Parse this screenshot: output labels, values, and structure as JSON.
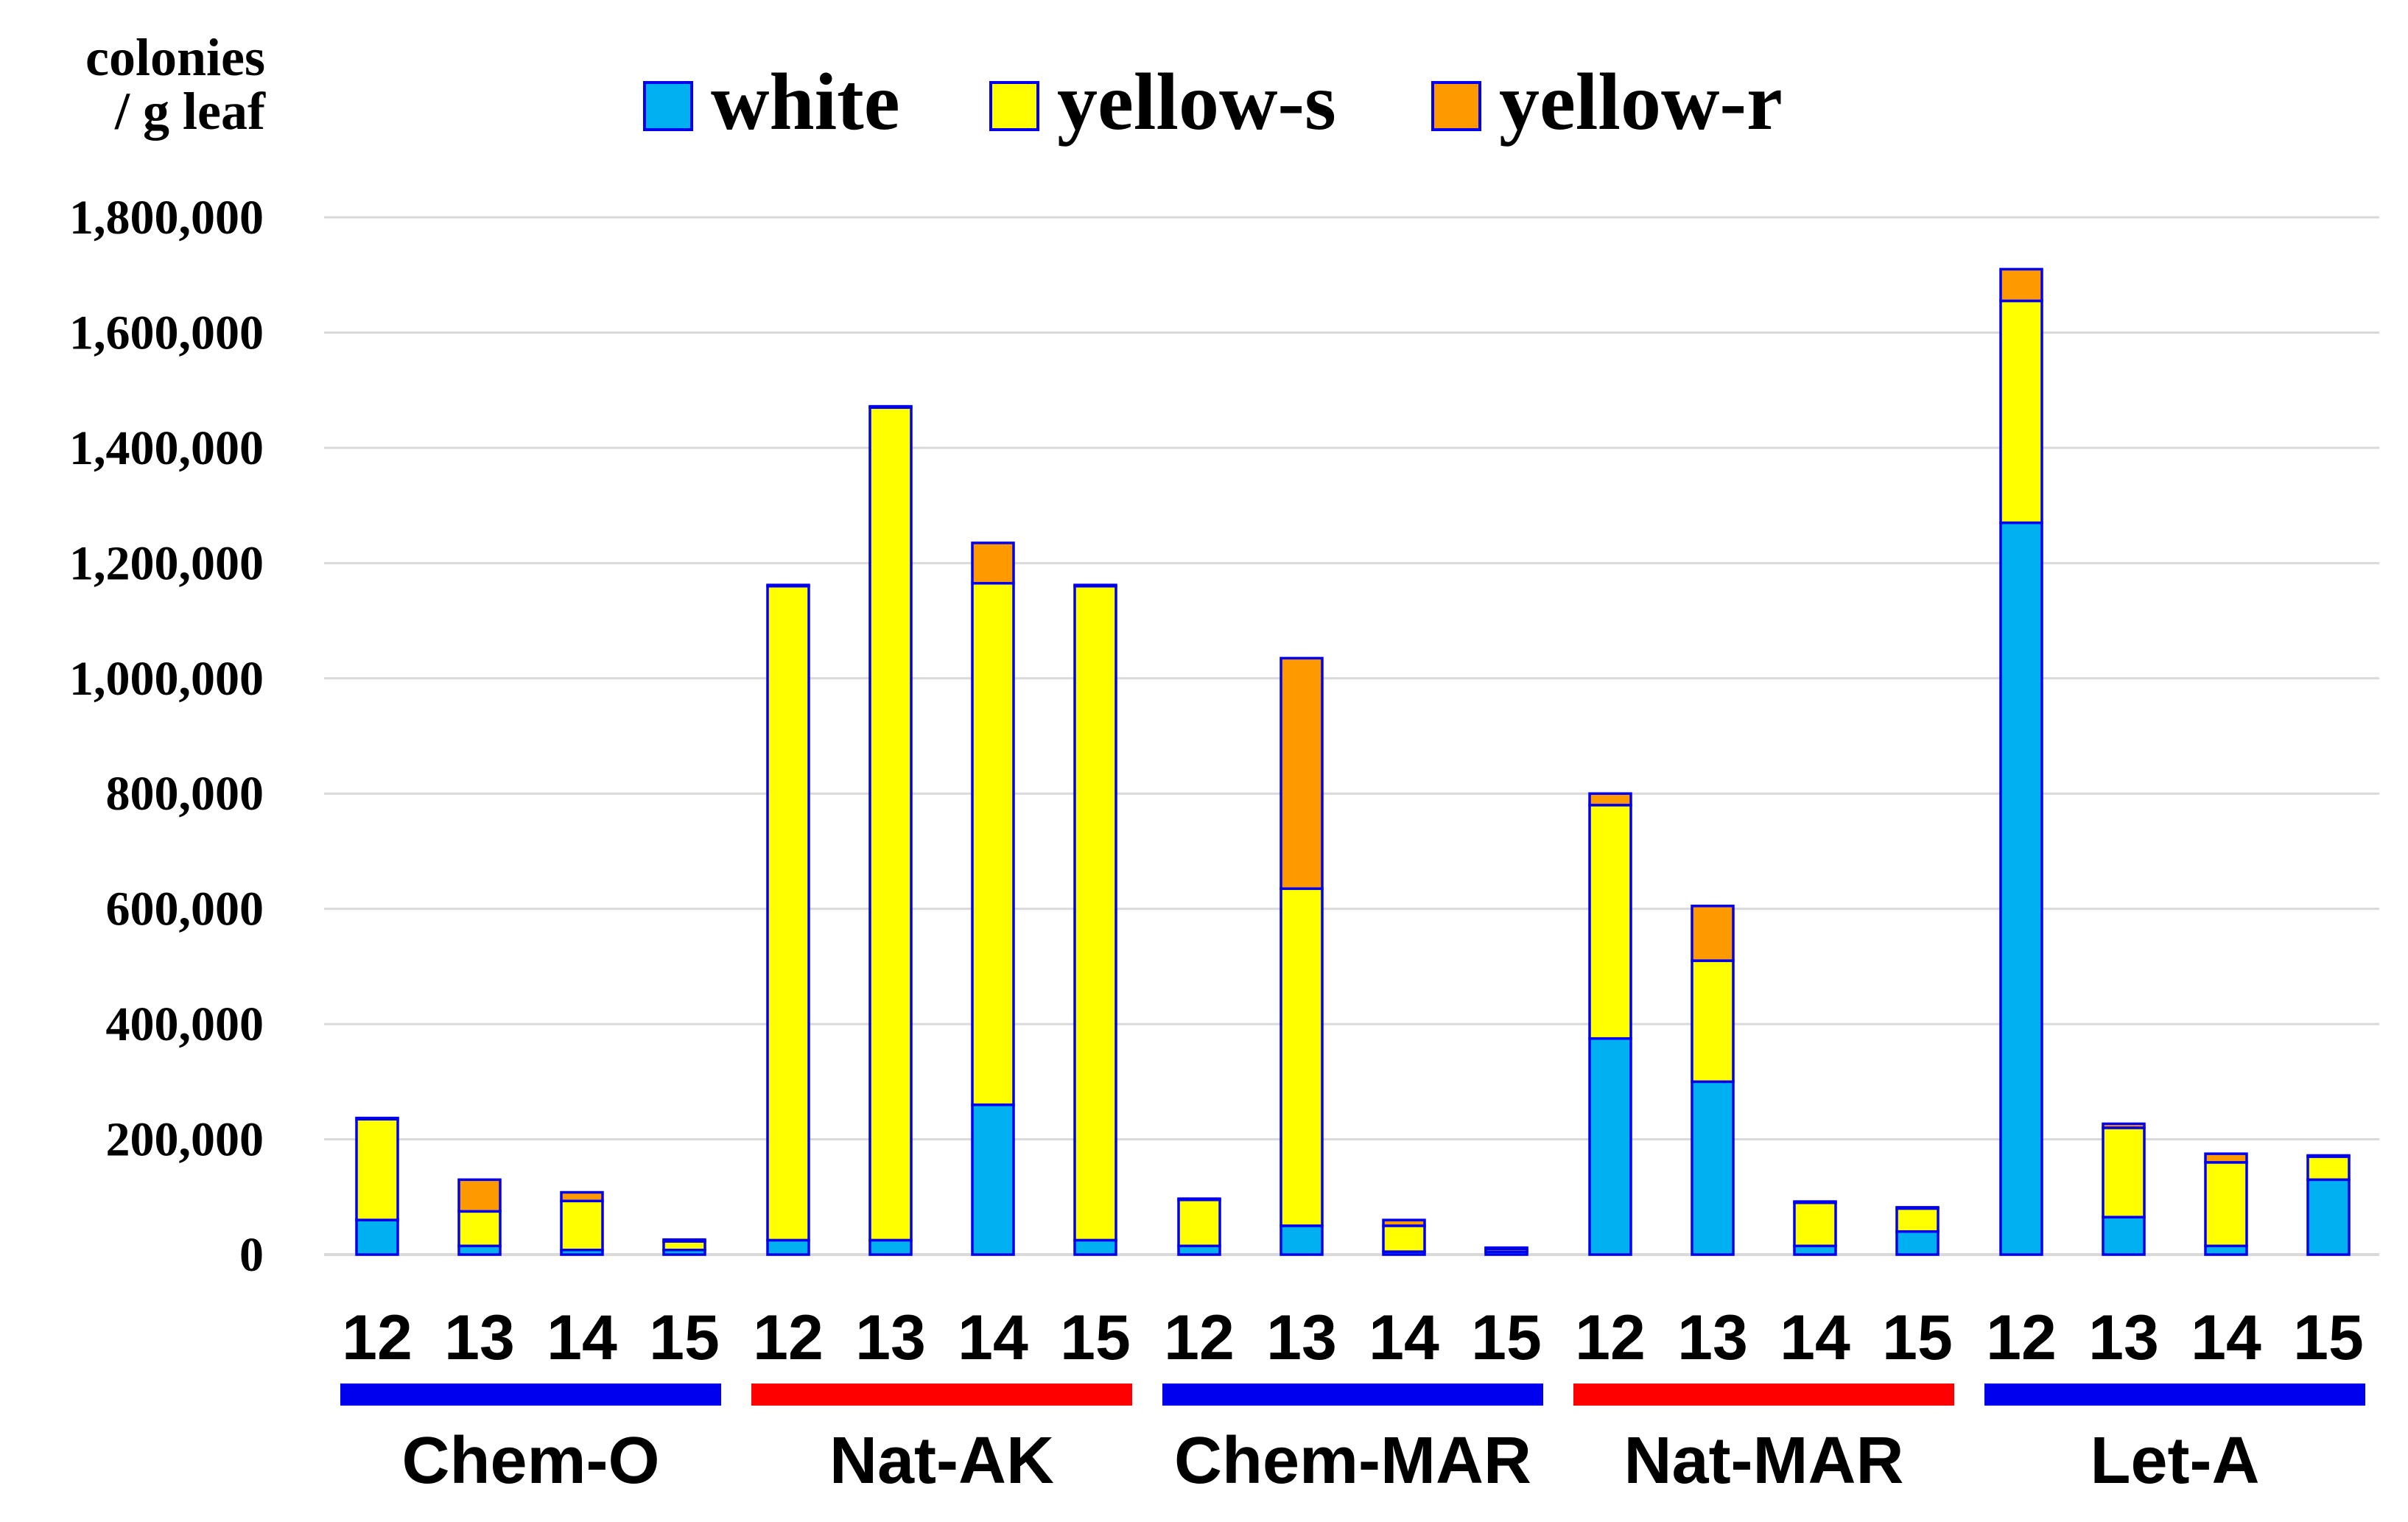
{
  "chart_data": {
    "type": "bar",
    "stacked": true,
    "ylabel": "colonies / g leaf",
    "ylabel_lines": [
      "colonies",
      "/ g leaf"
    ],
    "ylim": [
      0,
      1800000
    ],
    "yticks": [
      0,
      200000,
      400000,
      600000,
      800000,
      1000000,
      1200000,
      1400000,
      1600000,
      1800000
    ],
    "ytick_labels": [
      "0",
      "200,000",
      "400,000",
      "600,000",
      "800,000",
      "1,000,000",
      "1,200,000",
      "1,400,000",
      "1,600,000",
      "1,800,000"
    ],
    "grid": true,
    "legend_position": "top",
    "groups": [
      {
        "name": "Chem-O",
        "bar_color": "#0000ee"
      },
      {
        "name": "Nat-AK",
        "bar_color": "#ff0000"
      },
      {
        "name": "Chem-MAR",
        "bar_color": "#0000ee"
      },
      {
        "name": "Nat-MAR",
        "bar_color": "#ff0000"
      },
      {
        "name": "Let-A",
        "bar_color": "#0000ee"
      }
    ],
    "sub_categories": [
      "12",
      "13",
      "14",
      "15"
    ],
    "categories": [
      "Chem-O 12",
      "Chem-O 13",
      "Chem-O 14",
      "Chem-O 15",
      "Nat-AK 12",
      "Nat-AK 13",
      "Nat-AK 14",
      "Nat-AK 15",
      "Chem-MAR 12",
      "Chem-MAR 13",
      "Chem-MAR 14",
      "Chem-MAR 15",
      "Nat-MAR 12",
      "Nat-MAR 13",
      "Nat-MAR 14",
      "Nat-MAR 15",
      "Let-A 12",
      "Let-A 13",
      "Let-A 14",
      "Let-A 15"
    ],
    "series": [
      {
        "name": "white",
        "color": "#00b0f0",
        "values": [
          60000,
          15000,
          8000,
          8000,
          25000,
          25000,
          260000,
          25000,
          15000,
          50000,
          5000,
          5000,
          375000,
          300000,
          15000,
          40000,
          1270000,
          65000,
          15000,
          130000
        ]
      },
      {
        "name": "yellow-s",
        "color": "#ffff00",
        "values": [
          175000,
          60000,
          85000,
          15000,
          1135000,
          1445000,
          905000,
          1135000,
          80000,
          585000,
          45000,
          5000,
          405000,
          210000,
          75000,
          40000,
          385000,
          155000,
          145000,
          40000
        ]
      },
      {
        "name": "yellow-r",
        "color": "#ff9900",
        "values": [
          2000,
          55000,
          15000,
          3000,
          2000,
          2000,
          70000,
          2000,
          2000,
          400000,
          10000,
          2000,
          20000,
          95000,
          2000,
          2000,
          55000,
          7000,
          15000,
          2000
        ]
      }
    ]
  }
}
